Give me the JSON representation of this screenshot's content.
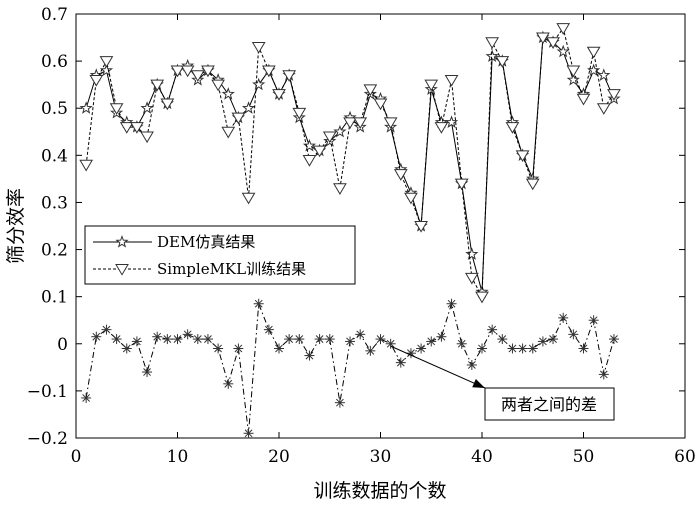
{
  "chart_data": {
    "type": "line",
    "xlabel": "训练数据的个数",
    "ylabel": "筛分效率",
    "xlim": [
      0,
      60
    ],
    "ylim": [
      -0.2,
      0.7
    ],
    "xticks": [
      0,
      10,
      20,
      30,
      40,
      50,
      60
    ],
    "yticks": [
      -0.2,
      -0.1,
      0,
      0.1,
      0.2,
      0.3,
      0.4,
      0.5,
      0.6,
      0.7
    ],
    "ytick_labels": [
      "−0.2",
      "−0.1",
      "0",
      "0.1",
      "0.2",
      "0.3",
      "0.4",
      "0.5",
      "0.6",
      "0.7"
    ],
    "grid": false,
    "legend_position": "left",
    "x": [
      1,
      2,
      3,
      4,
      5,
      6,
      7,
      8,
      9,
      10,
      11,
      12,
      13,
      14,
      15,
      16,
      17,
      18,
      19,
      20,
      21,
      22,
      23,
      24,
      25,
      26,
      27,
      28,
      29,
      30,
      31,
      32,
      33,
      34,
      35,
      36,
      37,
      38,
      39,
      40,
      41,
      42,
      43,
      44,
      45,
      46,
      47,
      48,
      49,
      50,
      51,
      52,
      53
    ],
    "series": [
      {
        "name": "DEM仿真结果",
        "style": "solid",
        "marker": "star",
        "values": [
          0.5,
          0.57,
          0.58,
          0.49,
          0.47,
          0.46,
          0.5,
          0.55,
          0.51,
          0.58,
          0.59,
          0.56,
          0.58,
          0.56,
          0.53,
          0.48,
          0.5,
          0.55,
          0.58,
          0.53,
          0.57,
          0.48,
          0.42,
          0.41,
          0.43,
          0.45,
          0.48,
          0.46,
          0.53,
          0.52,
          0.46,
          0.37,
          0.32,
          0.25,
          0.54,
          0.47,
          0.47,
          0.34,
          0.19,
          0.11,
          0.61,
          0.6,
          0.47,
          0.4,
          0.35,
          0.65,
          0.64,
          0.62,
          0.56,
          0.53,
          0.58,
          0.57,
          0.52
        ]
      },
      {
        "name": "SimpleMKL训练结果",
        "style": "dashed",
        "marker": "triangle-down",
        "values": [
          0.38,
          0.56,
          0.6,
          0.5,
          0.46,
          0.46,
          0.44,
          0.55,
          0.51,
          0.58,
          0.58,
          0.57,
          0.58,
          0.55,
          0.45,
          0.48,
          0.31,
          0.63,
          0.58,
          0.53,
          0.57,
          0.49,
          0.39,
          0.41,
          0.44,
          0.33,
          0.47,
          0.47,
          0.54,
          0.51,
          0.47,
          0.36,
          0.31,
          0.25,
          0.55,
          0.46,
          0.56,
          0.34,
          0.14,
          0.1,
          0.64,
          0.6,
          0.46,
          0.4,
          0.34,
          0.65,
          0.64,
          0.67,
          0.58,
          0.52,
          0.62,
          0.5,
          0.53
        ]
      },
      {
        "name": "两者之间的差",
        "style": "dashdot",
        "marker": "asterisk",
        "values": [
          -0.115,
          0.015,
          0.03,
          0.01,
          -0.01,
          0.005,
          -0.06,
          0.015,
          0.01,
          0.01,
          0.02,
          0.01,
          0.01,
          -0.01,
          -0.085,
          -0.01,
          -0.19,
          0.085,
          0.03,
          -0.01,
          0.01,
          0.01,
          -0.025,
          0.01,
          0.01,
          -0.125,
          0.005,
          0.02,
          -0.015,
          0.01,
          0.0,
          -0.04,
          -0.02,
          -0.01,
          0.005,
          0.015,
          0.085,
          0.0,
          -0.045,
          -0.01,
          0.03,
          0.01,
          -0.01,
          -0.01,
          -0.01,
          0.005,
          0.01,
          0.055,
          0.02,
          -0.01,
          0.05,
          -0.065,
          0.01
        ]
      }
    ],
    "legend": {
      "entries": [
        "DEM仿真结果",
        "SimpleMKL训练结果"
      ]
    },
    "annotations": [
      {
        "text": "两者之间的差",
        "points_to": {
          "x": 31,
          "y": -0.005
        }
      }
    ]
  },
  "style": {
    "line_color": "#000000",
    "marker_edge": "#333333",
    "marker_fill": "#ffffff",
    "background": "#ffffff"
  }
}
